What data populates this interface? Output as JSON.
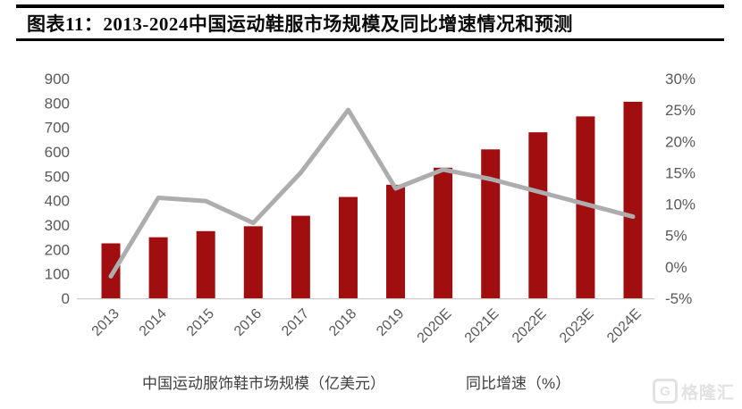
{
  "header": {
    "title": "图表11：2013-2024中国运动鞋服市场规模及同比增速情况和预测"
  },
  "legend": {
    "bar_label": "中国运动服饰鞋市场规模（亿美元）",
    "line_label": "同比增速（%）"
  },
  "watermark": {
    "text": "格隆汇",
    "logo": "gelonghui-G"
  },
  "colors": {
    "bar": "#A00E10",
    "line": "#ADADAD",
    "axis_text": "#595959",
    "title_rule": "#000000",
    "baseline": "#C9C9C9"
  },
  "chart_data": {
    "type": "bar",
    "subtype": "bar+line combo, dual axis",
    "title": "2013-2024中国运动鞋服市场规模及同比增速情况和预测",
    "categories": [
      "2013",
      "2014",
      "2015",
      "2016",
      "2017",
      "2018",
      "2019",
      "2020E",
      "2021E",
      "2022E",
      "2023E",
      "2024E"
    ],
    "series": [
      {
        "name": "中国运动服饰鞋市场规模（亿美元）",
        "type": "bar",
        "axis": "left",
        "color": "#A00E10",
        "values": [
          225,
          250,
          275,
          295,
          338,
          415,
          465,
          535,
          610,
          680,
          745,
          805
        ]
      },
      {
        "name": "同比增速（%）",
        "type": "line",
        "axis": "right",
        "color": "#ADADAD",
        "values": [
          -1.5,
          11,
          10.5,
          7,
          15,
          25,
          12.5,
          15.5,
          14,
          12,
          10,
          8
        ]
      }
    ],
    "xlabel": "",
    "ylabel_left": "亿美元",
    "ylabel_right": "%",
    "y_left": {
      "min": 0,
      "max": 900,
      "ticks": [
        900,
        800,
        700,
        600,
        500,
        400,
        300,
        200,
        100,
        0
      ]
    },
    "y_right": {
      "min": -5,
      "max": 30,
      "ticks": [
        {
          "v": 30,
          "label": "30%"
        },
        {
          "v": 25,
          "label": "25%"
        },
        {
          "v": 20,
          "label": "20%"
        },
        {
          "v": 15,
          "label": "15%"
        },
        {
          "v": 10,
          "label": "10%"
        },
        {
          "v": 5,
          "label": "5%"
        },
        {
          "v": 0,
          "label": "0%"
        },
        {
          "v": -5,
          "label": "-5%"
        }
      ]
    },
    "grid": false,
    "legend_position": "bottom"
  }
}
